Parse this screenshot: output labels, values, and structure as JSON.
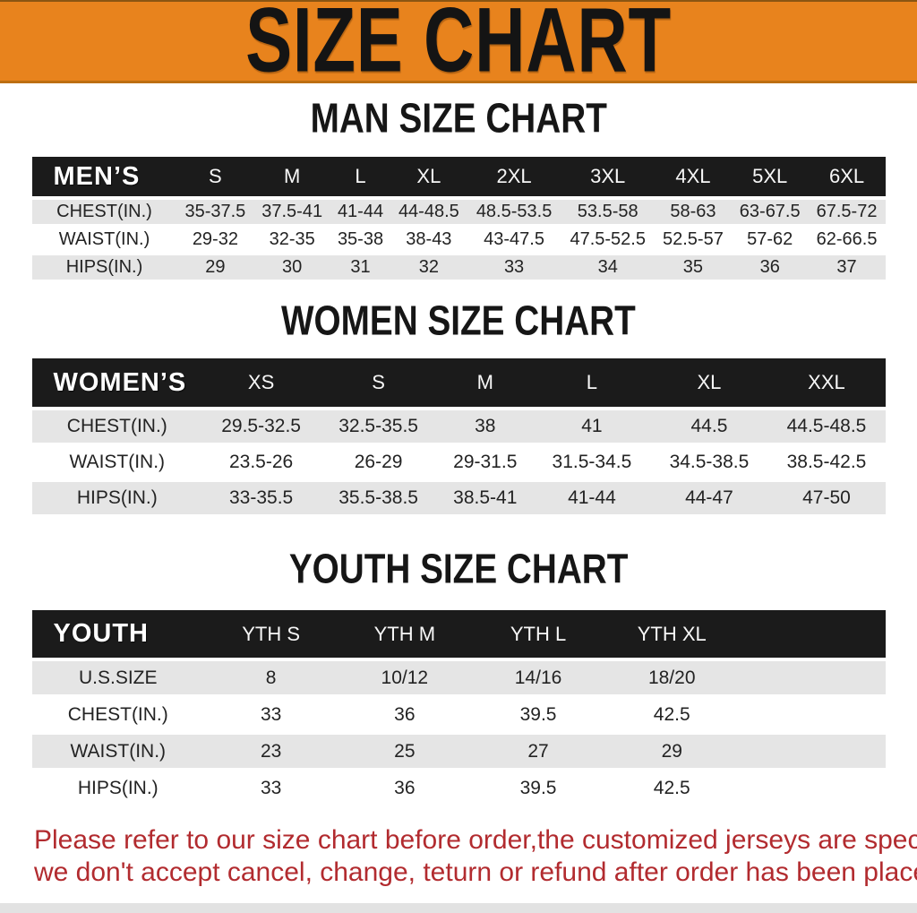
{
  "colors": {
    "accent": "#e8831d",
    "table_header_bg": "#1b1b1b",
    "row_alt_bg": "#e5e5e5",
    "warning": "#b22b2f"
  },
  "banner": {
    "title": "SIZE CHART"
  },
  "sections": [
    {
      "heading": "MAN SIZE CHART",
      "table": {
        "header_label": "MEN’S",
        "columns": [
          "S",
          "M",
          "L",
          "XL",
          "2XL",
          "3XL",
          "4XL",
          "5XL",
          "6XL"
        ],
        "rows": [
          {
            "label": "CHEST(IN.)",
            "values": [
              "35-37.5",
              "37.5-41",
              "41-44",
              "44-48.5",
              "48.5-53.5",
              "53.5-58",
              "58-63",
              "63-67.5",
              "67.5-72"
            ]
          },
          {
            "label": "WAIST(IN.)",
            "values": [
              "29-32",
              "32-35",
              "35-38",
              "38-43",
              "43-47.5",
              "47.5-52.5",
              "52.5-57",
              "57-62",
              "62-66.5"
            ]
          },
          {
            "label": "HIPS(IN.)",
            "values": [
              "29",
              "30",
              "31",
              "32",
              "33",
              "34",
              "35",
              "36",
              "37"
            ]
          }
        ]
      }
    },
    {
      "heading": "WOMEN SIZE CHART",
      "table": {
        "header_label": "WOMEN’S",
        "columns": [
          "XS",
          "S",
          "M",
          "L",
          "XL",
          "XXL"
        ],
        "rows": [
          {
            "label": "CHEST(IN.)",
            "values": [
              "29.5-32.5",
              "32.5-35.5",
              "38",
              "41",
              "44.5",
              "44.5-48.5"
            ]
          },
          {
            "label": "WAIST(IN.)",
            "values": [
              "23.5-26",
              "26-29",
              "29-31.5",
              "31.5-34.5",
              "34.5-38.5",
              "38.5-42.5"
            ]
          },
          {
            "label": "HIPS(IN.)",
            "values": [
              "33-35.5",
              "35.5-38.5",
              "38.5-41",
              "41-44",
              "44-47",
              "47-50"
            ]
          }
        ]
      }
    },
    {
      "heading": "YOUTH SIZE CHART",
      "table": {
        "header_label": "YOUTH",
        "columns": [
          "YTH S",
          "YTH M",
          "YTH L",
          "YTH XL"
        ],
        "rows": [
          {
            "label": "U.S.SIZE",
            "values": [
              "8",
              "10/12",
              "14/16",
              "18/20"
            ]
          },
          {
            "label": "CHEST(IN.)",
            "values": [
              "33",
              "36",
              "39.5",
              "42.5"
            ]
          },
          {
            "label": "WAIST(IN.)",
            "values": [
              "23",
              "25",
              "27",
              "29"
            ]
          },
          {
            "label": "HIPS(IN.)",
            "values": [
              "33",
              "36",
              "39.5",
              "42.5"
            ]
          }
        ]
      }
    }
  ],
  "footer": {
    "lines": [
      "Please refer to our size chart before order,the customized jerseys are special products,",
      "we don't accept cancel, change, teturn or refund after order has been placed!"
    ]
  }
}
